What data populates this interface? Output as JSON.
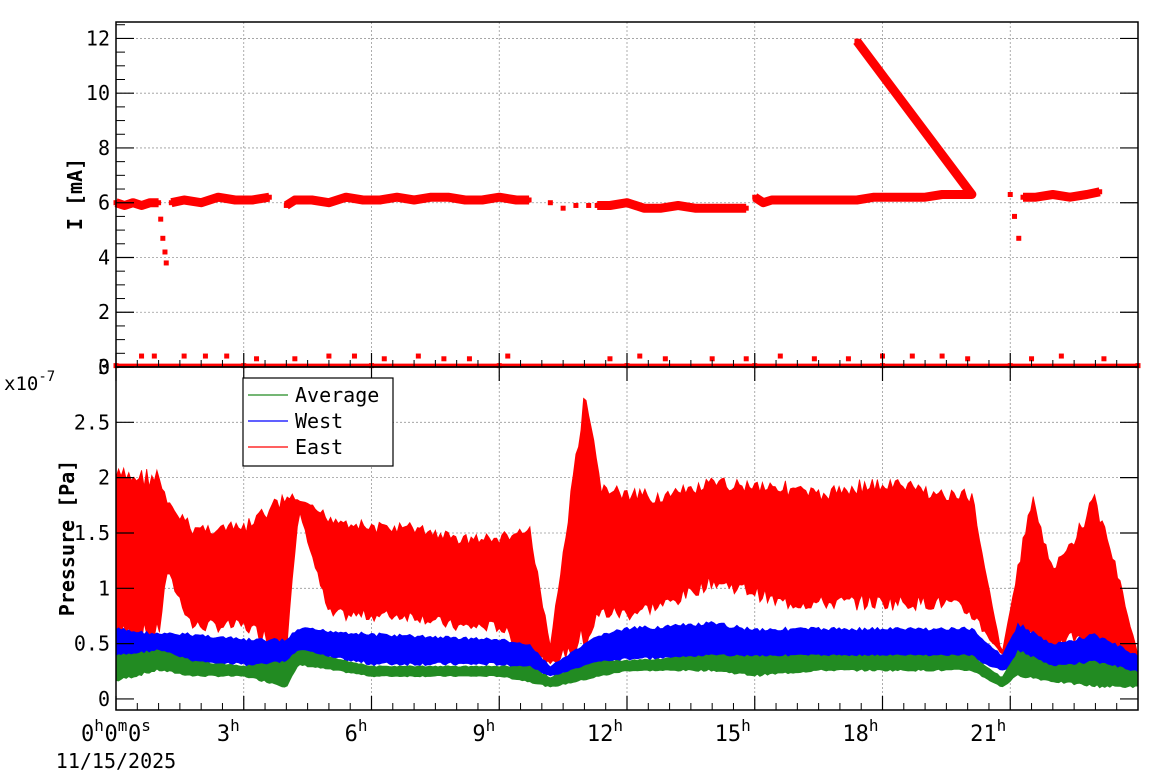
{
  "colors": {
    "current": "#ff0000",
    "average": "#228b22",
    "west": "#0000ff",
    "east": "#ff0000",
    "grid": "#999999",
    "frame": "#000000"
  },
  "chart_data": [
    {
      "type": "scatter",
      "title": "",
      "ylabel": "I [mA]",
      "xlabel": "",
      "x_unit": "hours since 11/15/2025 00:00",
      "xlim": [
        0,
        24
      ],
      "ylim": [
        0,
        12.6
      ],
      "yticks": [
        0,
        2,
        4,
        6,
        8,
        10,
        12
      ],
      "ytick_labels": [
        "0",
        "2",
        "4",
        "6",
        "8",
        "10",
        "12"
      ],
      "grid": true,
      "series": [
        {
          "name": "",
          "color": "#ff0000",
          "points": [
            [
              0.0,
              6.0
            ],
            [
              0.2,
              5.9
            ],
            [
              0.4,
              6.0
            ],
            [
              0.6,
              5.9
            ],
            [
              0.8,
              6.0
            ],
            [
              1.0,
              6.0
            ],
            [
              1.05,
              5.4
            ],
            [
              1.1,
              4.7
            ],
            [
              1.15,
              4.2
            ],
            [
              1.18,
              3.8
            ],
            [
              1.3,
              6.0
            ],
            [
              1.6,
              6.1
            ],
            [
              2.0,
              6.0
            ],
            [
              2.4,
              6.2
            ],
            [
              2.8,
              6.1
            ],
            [
              3.2,
              6.1
            ],
            [
              3.6,
              6.2
            ],
            [
              4.0,
              5.9
            ],
            [
              4.2,
              6.1
            ],
            [
              4.6,
              6.1
            ],
            [
              5.0,
              6.0
            ],
            [
              5.4,
              6.2
            ],
            [
              5.8,
              6.1
            ],
            [
              6.2,
              6.1
            ],
            [
              6.6,
              6.2
            ],
            [
              7.0,
              6.1
            ],
            [
              7.4,
              6.2
            ],
            [
              7.8,
              6.2
            ],
            [
              8.2,
              6.1
            ],
            [
              8.6,
              6.1
            ],
            [
              9.0,
              6.2
            ],
            [
              9.4,
              6.1
            ],
            [
              9.7,
              6.1
            ],
            [
              10.2,
              6.0
            ],
            [
              10.5,
              5.8
            ],
            [
              10.8,
              5.9
            ],
            [
              11.1,
              5.9
            ],
            [
              11.3,
              5.9
            ],
            [
              11.6,
              5.9
            ],
            [
              12.0,
              6.0
            ],
            [
              12.4,
              5.8
            ],
            [
              12.8,
              5.8
            ],
            [
              13.2,
              5.9
            ],
            [
              13.6,
              5.8
            ],
            [
              14.0,
              5.8
            ],
            [
              14.4,
              5.8
            ],
            [
              14.8,
              5.8
            ],
            [
              15.0,
              6.2
            ],
            [
              15.2,
              6.0
            ],
            [
              15.4,
              6.1
            ],
            [
              15.8,
              6.1
            ],
            [
              16.2,
              6.1
            ],
            [
              16.6,
              6.1
            ],
            [
              17.0,
              6.1
            ],
            [
              17.4,
              6.1
            ],
            [
              17.8,
              6.2
            ],
            [
              18.2,
              6.2
            ],
            [
              18.6,
              6.2
            ],
            [
              19.0,
              6.2
            ],
            [
              19.4,
              6.3
            ],
            [
              19.8,
              6.3
            ],
            [
              20.1,
              6.3
            ],
            [
              21.0,
              6.3
            ],
            [
              21.1,
              5.5
            ],
            [
              21.2,
              4.7
            ],
            [
              21.3,
              6.2
            ],
            [
              21.6,
              6.2
            ],
            [
              22.0,
              6.3
            ],
            [
              22.4,
              6.2
            ],
            [
              22.8,
              6.3
            ],
            [
              23.1,
              6.4
            ],
            [
              17.4,
              11.9
            ],
            [
              0.6,
              0.4
            ],
            [
              0.9,
              0.4
            ],
            [
              1.6,
              0.4
            ],
            [
              2.1,
              0.4
            ],
            [
              2.6,
              0.4
            ],
            [
              3.3,
              0.3
            ],
            [
              4.2,
              0.3
            ],
            [
              5.0,
              0.4
            ],
            [
              5.6,
              0.4
            ],
            [
              6.3,
              0.3
            ],
            [
              7.1,
              0.4
            ],
            [
              7.7,
              0.3
            ],
            [
              8.3,
              0.3
            ],
            [
              9.2,
              0.4
            ],
            [
              11.6,
              0.3
            ],
            [
              12.3,
              0.4
            ],
            [
              12.9,
              0.3
            ],
            [
              14.0,
              0.3
            ],
            [
              14.8,
              0.3
            ],
            [
              15.6,
              0.4
            ],
            [
              16.4,
              0.3
            ],
            [
              17.2,
              0.3
            ],
            [
              18.0,
              0.4
            ],
            [
              18.7,
              0.4
            ],
            [
              19.4,
              0.4
            ],
            [
              20.0,
              0.3
            ],
            [
              21.5,
              0.3
            ],
            [
              22.2,
              0.4
            ],
            [
              23.2,
              0.3
            ],
            [
              0.0,
              0.05
            ],
            [
              3.0,
              0.05
            ],
            [
              6.0,
              0.05
            ],
            [
              9.0,
              0.05
            ],
            [
              12.0,
              0.05
            ],
            [
              15.0,
              0.05
            ],
            [
              18.0,
              0.05
            ],
            [
              21.0,
              0.05
            ],
            [
              24.0,
              0.05
            ]
          ]
        }
      ]
    },
    {
      "type": "line",
      "title": "",
      "ylabel": "Pressure [Pa]",
      "xlabel": "",
      "y_multiplier": "x10",
      "y_exponent": "-7",
      "x_unit": "hours since 11/15/2025 00:00",
      "xlim": [
        0,
        24
      ],
      "ylim": [
        -0.1,
        3.0
      ],
      "yticks": [
        0,
        0.5,
        1,
        1.5,
        2,
        2.5,
        3
      ],
      "ytick_labels": [
        "0",
        "0.5",
        "1",
        "1.5",
        "2",
        "2.5",
        "3"
      ],
      "xticks": [
        0,
        3,
        6,
        9,
        12,
        15,
        18,
        21
      ],
      "xtick_labels": [
        {
          "num": "0",
          "unit": "h",
          "num2": "0",
          "unit2": "m",
          "num3": "0",
          "unit3": "s"
        },
        {
          "num": "3",
          "unit": "h"
        },
        {
          "num": "6",
          "unit": "h"
        },
        {
          "num": "9",
          "unit": "h"
        },
        {
          "num": "12",
          "unit": "h"
        },
        {
          "num": "15",
          "unit": "h"
        },
        {
          "num": "18",
          "unit": "h"
        },
        {
          "num": "21",
          "unit": "h"
        }
      ],
      "date_label": "11/15/2025",
      "grid": true,
      "legend_position": "top-left",
      "legend": [
        "Average",
        "West",
        "East"
      ],
      "series": [
        {
          "name": "East",
          "color": "#ff0000",
          "x": [
            0,
            1.0,
            1.2,
            1.8,
            3.0,
            4.0,
            4.3,
            5.0,
            6.0,
            7.0,
            8.0,
            9.0,
            9.7,
            10.2,
            11.0,
            11.4,
            12.0,
            13.0,
            14.0,
            15.0,
            15.5,
            16.5,
            17.5,
            18.5,
            19.5,
            20.1,
            20.8,
            21.5,
            22.0,
            22.5,
            23.0,
            23.5,
            24.0
          ],
          "low": [
            0.5,
            0.5,
            1.1,
            0.6,
            0.6,
            0.4,
            1.7,
            0.7,
            0.7,
            0.7,
            0.6,
            0.6,
            0.35,
            0.3,
            0.4,
            0.7,
            0.7,
            0.8,
            1.0,
            0.9,
            0.8,
            0.8,
            0.8,
            0.8,
            0.8,
            0.7,
            0.4,
            0.5,
            0.4,
            0.5,
            0.3,
            0.4,
            0.35
          ],
          "high": [
            2.1,
            2.1,
            1.8,
            1.6,
            1.6,
            1.9,
            1.8,
            1.7,
            1.6,
            1.6,
            1.5,
            1.5,
            1.6,
            0.5,
            2.8,
            2.0,
            1.9,
            1.9,
            2.0,
            2.0,
            2.0,
            1.9,
            2.0,
            2.0,
            1.9,
            1.9,
            0.4,
            1.9,
            1.2,
            1.5,
            1.9,
            1.2,
            0.4
          ]
        },
        {
          "name": "West",
          "color": "#0000ff",
          "x": [
            0,
            1.0,
            1.8,
            3.0,
            4.0,
            4.3,
            6.0,
            9.0,
            9.7,
            10.2,
            11.4,
            12.0,
            14.0,
            15.0,
            16.5,
            18.0,
            20.1,
            20.8,
            21.2,
            22.0,
            23.0,
            24.0
          ],
          "low": [
            0.25,
            0.35,
            0.3,
            0.3,
            0.15,
            0.4,
            0.3,
            0.3,
            0.25,
            0.2,
            0.3,
            0.35,
            0.35,
            0.3,
            0.35,
            0.35,
            0.35,
            0.25,
            0.3,
            0.25,
            0.25,
            0.2
          ],
          "high": [
            0.65,
            0.6,
            0.6,
            0.55,
            0.55,
            0.65,
            0.6,
            0.55,
            0.5,
            0.3,
            0.6,
            0.65,
            0.7,
            0.65,
            0.65,
            0.65,
            0.65,
            0.4,
            0.7,
            0.5,
            0.6,
            0.4
          ]
        },
        {
          "name": "Average",
          "color": "#228b22",
          "x": [
            0,
            1.0,
            1.8,
            3.0,
            4.0,
            4.3,
            6.0,
            9.0,
            9.7,
            10.2,
            11.4,
            12.0,
            14.0,
            15.0,
            16.5,
            18.0,
            20.1,
            20.8,
            21.2,
            22.0,
            23.0,
            24.0
          ],
          "low": [
            0.15,
            0.25,
            0.2,
            0.2,
            0.1,
            0.3,
            0.2,
            0.2,
            0.15,
            0.1,
            0.2,
            0.25,
            0.25,
            0.2,
            0.25,
            0.25,
            0.25,
            0.1,
            0.2,
            0.15,
            0.1,
            0.1
          ],
          "high": [
            0.4,
            0.45,
            0.35,
            0.3,
            0.35,
            0.45,
            0.3,
            0.3,
            0.3,
            0.2,
            0.35,
            0.35,
            0.4,
            0.4,
            0.4,
            0.4,
            0.4,
            0.2,
            0.45,
            0.3,
            0.35,
            0.25
          ]
        }
      ]
    }
  ]
}
